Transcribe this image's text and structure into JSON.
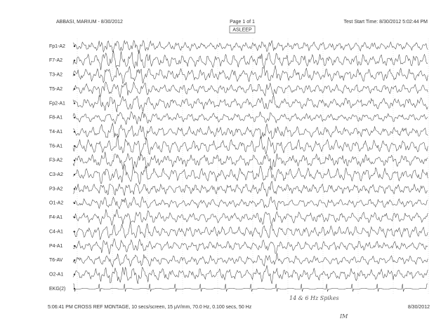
{
  "header": {
    "patient": "ABBASI, MARIUM - 8/30/2012",
    "page": "Page 1 of 1",
    "state": "ASLEEP",
    "start_time": "Test Start Time: 8/30/2012 5:02:44 PM"
  },
  "channels": [
    "Fp1-A2",
    "F7-A2",
    "T3-A2",
    "T5-A2",
    "Fp2-A1",
    "F8-A1",
    "T4-A1",
    "T6-A1",
    "F3-A2",
    "C3-A2",
    "P3-A2",
    "O1-A2",
    "F4-A1",
    "C4-A1",
    "P4-A1",
    "T6-AV",
    "O2-A1",
    "EKG(2)"
  ],
  "annotations": {
    "spikes": "14 & 6 Hz Spikes",
    "initials": "IM"
  },
  "footer": {
    "settings": "5:06:41 PM CROSS REF MONTAGE, 10 secs/screen, 15 μV/mm, 70.0 Hz, 0.100 secs, 50 Hz",
    "date": "8/30/2012"
  }
}
